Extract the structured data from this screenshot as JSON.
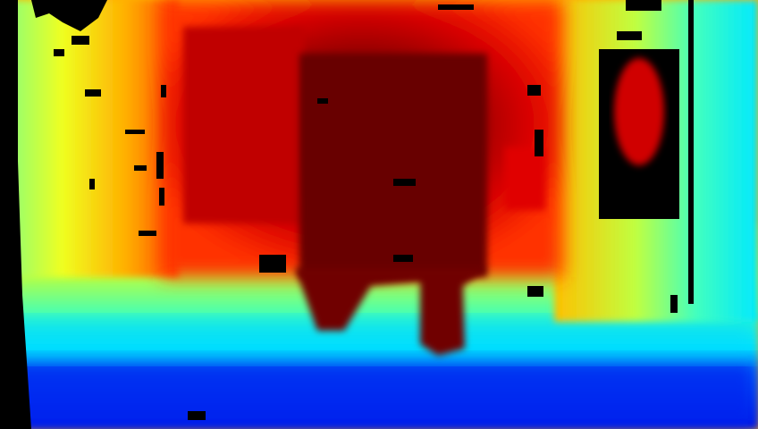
{
  "image": {
    "kind": "depth map visualization",
    "colormap": "jet",
    "colormap_stops": [
      "#00008f",
      "#0000ff",
      "#00ffff",
      "#ffff00",
      "#ff0000",
      "#800000"
    ],
    "invalid_depth_color": "#000000"
  },
  "regions": [
    {
      "name": "floor-foreground",
      "color": "#0a3cff"
    },
    {
      "name": "floor-midground",
      "color": "#10e0ff"
    },
    {
      "name": "wall-left",
      "color": "#f5f026"
    },
    {
      "name": "wall-right",
      "color": "#55ffb0"
    },
    {
      "name": "back-cabinet",
      "color": "#c40000"
    },
    {
      "name": "doorway-far",
      "color": "#6a0000"
    },
    {
      "name": "right-window-frame",
      "color": "#000000"
    }
  ]
}
